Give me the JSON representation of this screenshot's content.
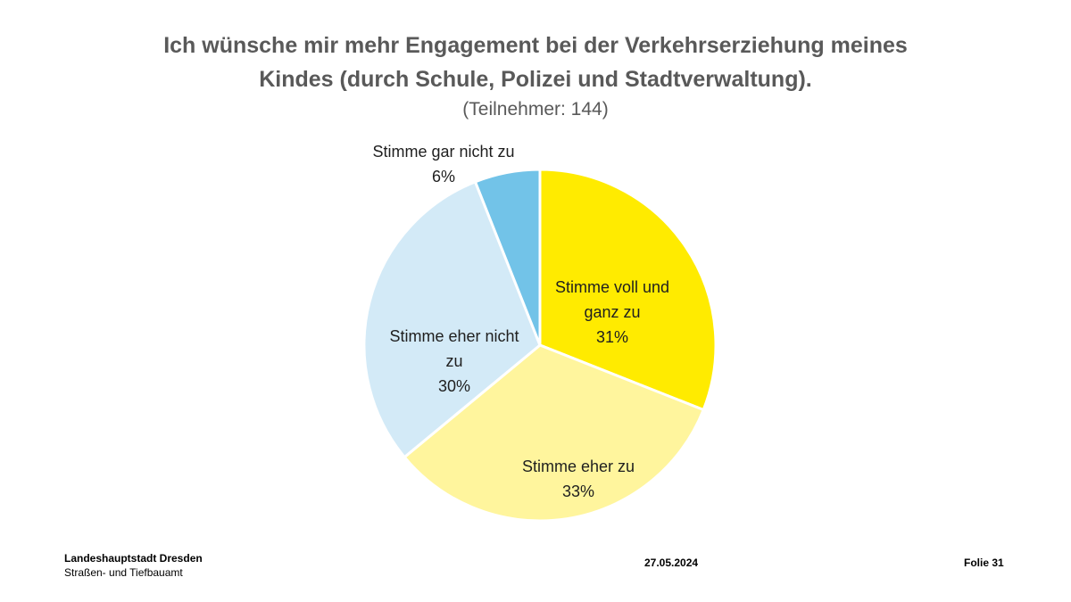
{
  "chart_data": {
    "type": "pie",
    "title_lines": [
      "Ich wünsche mir mehr Engagement bei der Verkehrserziehung meines",
      "Kindes (durch Schule, Polizei und Stadtverwaltung)."
    ],
    "subtitle": "(Teilnehmer: 144)",
    "start": "12 o'clock, clockwise",
    "slices": [
      {
        "label_lines": [
          "Stimme voll und",
          "ganz zu"
        ],
        "value_label": "31%",
        "value": 31,
        "color": "#FFEB00"
      },
      {
        "label_lines": [
          "Stimme eher zu"
        ],
        "value_label": "33%",
        "value": 33,
        "color": "#FFF59D"
      },
      {
        "label_lines": [
          "Stimme eher nicht",
          "zu"
        ],
        "value_label": "30%",
        "value": 30,
        "color": "#D3EAF7"
      },
      {
        "label_lines": [
          "Stimme gar nicht zu"
        ],
        "value_label": "6%",
        "value": 6,
        "color": "#72C3E8"
      }
    ]
  },
  "footer": {
    "org": "Landeshauptstadt Dresden",
    "dept": "Straßen- und Tiefbauamt",
    "date": "27.05.2024",
    "page": "Folie 31"
  }
}
